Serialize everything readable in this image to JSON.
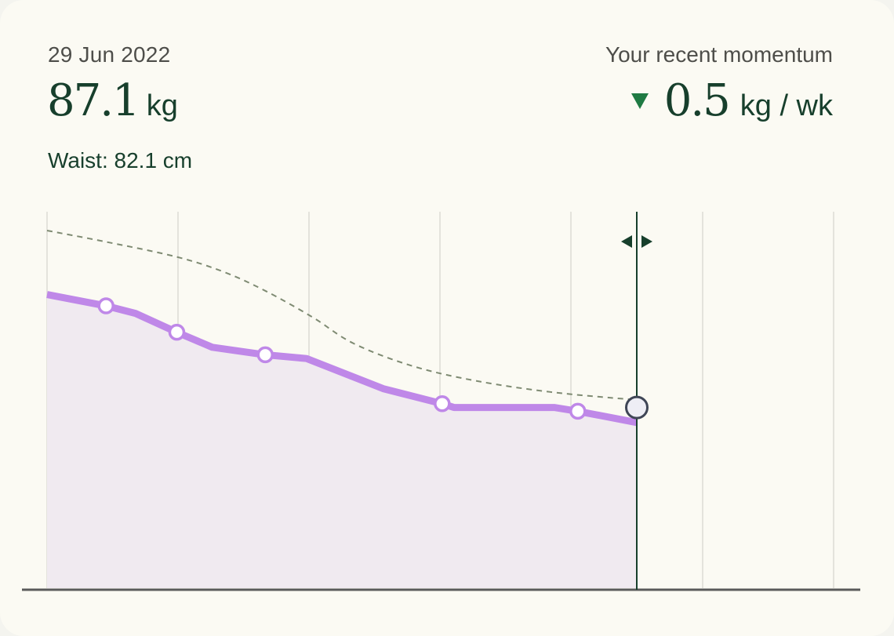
{
  "header": {
    "date": "29 Jun 2022",
    "weight_value": "87.1",
    "weight_unit": "kg",
    "waist": "Waist: 82.1 cm"
  },
  "momentum": {
    "label": "Your recent momentum",
    "direction": "down",
    "value": "0.5",
    "unit": "kg / wk",
    "arrow_icon": "triangle-down-icon"
  },
  "colors": {
    "card_bg": "#fbfaf3",
    "primary_text": "#173f2c",
    "secondary_text": "#4e4e4a",
    "momentum_arrow": "#1f7a43",
    "weight_line": "#bf88e8",
    "weight_fill": "#f0eaf0",
    "trend_line": "#7f8b73",
    "cursor_line": "#173f2c",
    "grid_line": "#dddbd5",
    "baseline": "#5a5a5a"
  },
  "chart": {
    "type": "line",
    "series": [
      {
        "points": [
          [
            0,
            0.22
          ],
          [
            0.1,
            0.25
          ],
          [
            0.15,
            0.27
          ],
          [
            0.22,
            0.32
          ],
          [
            0.28,
            0.36
          ],
          [
            0.37,
            0.38
          ],
          [
            0.44,
            0.39
          ],
          [
            0.57,
            0.47
          ],
          [
            0.67,
            0.51
          ],
          [
            0.69,
            0.52
          ],
          [
            0.86,
            0.52
          ],
          [
            0.9,
            0.53
          ],
          [
            1.0,
            0.56
          ]
        ],
        "markers": [
          1,
          3,
          5,
          8,
          11
        ]
      }
    ],
    "trend": {
      "points": [
        [
          0,
          0.05
        ],
        [
          0.1,
          0.08
        ],
        [
          0.22,
          0.12
        ],
        [
          0.3,
          0.16
        ],
        [
          0.37,
          0.21
        ],
        [
          0.45,
          0.28
        ],
        [
          0.52,
          0.35
        ],
        [
          0.62,
          0.41
        ],
        [
          0.73,
          0.45
        ],
        [
          0.86,
          0.48
        ],
        [
          1.0,
          0.5
        ]
      ]
    },
    "cursor_icon": "drag-handle-icon",
    "cursor_marker_level": 0.52,
    "grid": true
  }
}
